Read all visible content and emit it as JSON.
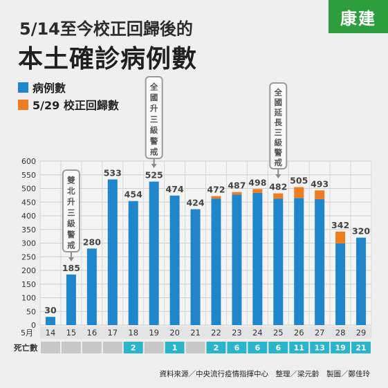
{
  "title": "5/14至今校正回歸後的",
  "subtitle": "本土確診病例數",
  "logo_text": "康建",
  "source_text": "資料來源／中央流行疫情指揮中心　整理／梁元齡　製圖／鄭佳玲",
  "colors": {
    "cases": "#1f86cc",
    "backlog": "#ef7d1f",
    "death_box": "#2ab5cc",
    "death_empty": "#c8c8c8",
    "logo_bg": "#2e9d3e"
  },
  "chart_data": {
    "type": "bar",
    "stacked": true,
    "categories": [
      "14",
      "15",
      "16",
      "17",
      "18",
      "19",
      "20",
      "21",
      "22",
      "23",
      "24",
      "25",
      "26",
      "27",
      "28",
      "29"
    ],
    "x_unit": "5月",
    "series": [
      {
        "name": "病例數",
        "values": [
          30,
          185,
          280,
          533,
          454,
          525,
          474,
          424,
          463,
          478,
          484,
          463,
          465,
          461,
          299,
          320
        ]
      },
      {
        "name": "5/29 校正回歸數",
        "values": [
          0,
          0,
          0,
          0,
          0,
          0,
          0,
          0,
          9,
          9,
          14,
          19,
          40,
          32,
          43,
          0
        ]
      }
    ],
    "totals": [
      30,
      185,
      280,
      533,
      454,
      525,
      474,
      424,
      472,
      487,
      498,
      482,
      505,
      493,
      342,
      320
    ],
    "ylim": [
      0,
      600
    ],
    "yticks": [
      0,
      50,
      100,
      150,
      200,
      250,
      300,
      350,
      400,
      450,
      500,
      550,
      600
    ],
    "grid": true,
    "deaths_label": "死亡數",
    "deaths": [
      "",
      "",
      "",
      "",
      "2",
      "",
      "1",
      "",
      "2",
      "6",
      "6",
      "6",
      "11",
      "13",
      "19",
      "21"
    ],
    "annotations": [
      {
        "text": "雙北升三級警戒",
        "category": "15"
      },
      {
        "text": "全國升三級警戒",
        "category": "19"
      },
      {
        "text": "全國延長三級警戒",
        "category": "25"
      }
    ]
  }
}
